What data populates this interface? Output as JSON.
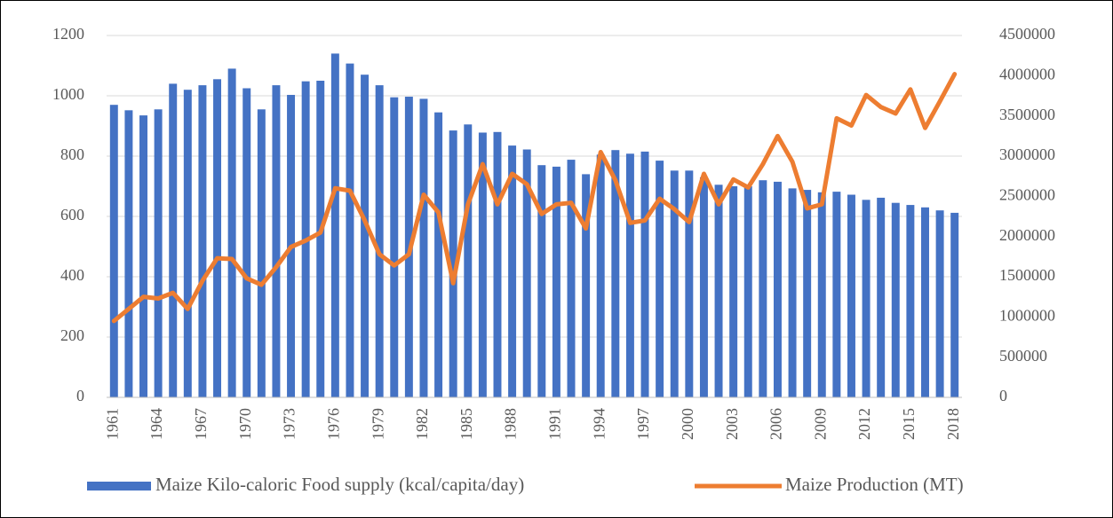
{
  "chart_data": {
    "type": "combo",
    "categories": [
      "1961",
      null,
      null,
      "1964",
      null,
      null,
      "1967",
      null,
      null,
      "1970",
      null,
      null,
      "1973",
      null,
      null,
      "1976",
      null,
      null,
      "1979",
      null,
      null,
      "1982",
      null,
      null,
      "1985",
      null,
      null,
      "1988",
      null,
      null,
      "1991",
      null,
      null,
      "1994",
      null,
      null,
      "1997",
      null,
      null,
      "2000",
      null,
      null,
      "2003",
      null,
      null,
      "2006",
      null,
      null,
      "2009",
      null,
      null,
      "2012",
      null,
      null,
      "2015",
      null,
      null,
      "2018"
    ],
    "series": [
      {
        "name": "Maize Kilo-caloric Food supply (kcal/capita/day)",
        "type": "bar",
        "color": "#4472c4",
        "values": [
          970,
          952,
          935,
          955,
          1040,
          1020,
          1035,
          1055,
          1090,
          1025,
          955,
          1035,
          1003,
          1048,
          1050,
          1140,
          1107,
          1070,
          1035,
          995,
          997,
          990,
          945,
          885,
          905,
          878,
          880,
          835,
          822,
          770,
          765,
          788,
          740,
          805,
          820,
          808,
          815,
          785,
          752,
          752,
          730,
          705,
          700,
          700,
          720,
          715,
          693,
          688,
          680,
          682,
          672,
          655,
          662,
          645,
          638,
          630,
          620,
          612
        ]
      },
      {
        "name": "Maize Production (MT)",
        "type": "line",
        "axis": "y2",
        "color": "#ed7d31",
        "values": [
          950000,
          1100000,
          1250000,
          1230000,
          1300000,
          1100000,
          1450000,
          1730000,
          1720000,
          1480000,
          1400000,
          1620000,
          1870000,
          1950000,
          2050000,
          2600000,
          2570000,
          2200000,
          1780000,
          1640000,
          1780000,
          2520000,
          2300000,
          1420000,
          2400000,
          2900000,
          2400000,
          2780000,
          2650000,
          2280000,
          2400000,
          2420000,
          2100000,
          3050000,
          2700000,
          2170000,
          2200000,
          2470000,
          2340000,
          2180000,
          2780000,
          2400000,
          2710000,
          2610000,
          2900000,
          3250000,
          2930000,
          2350000,
          2400000,
          3470000,
          3380000,
          3760000,
          3610000,
          3530000,
          3830000,
          3350000,
          3680000,
          4020000
        ]
      }
    ],
    "ylim": [
      0,
      1200
    ],
    "yticks": [
      0,
      200,
      400,
      600,
      800,
      1000,
      1200
    ],
    "y2lim": [
      0,
      4500000
    ],
    "y2ticks": [
      0,
      500000,
      1000000,
      1500000,
      2000000,
      2500000,
      3000000,
      3500000,
      4000000,
      4500000
    ],
    "grid": true,
    "legend": "bottom"
  }
}
